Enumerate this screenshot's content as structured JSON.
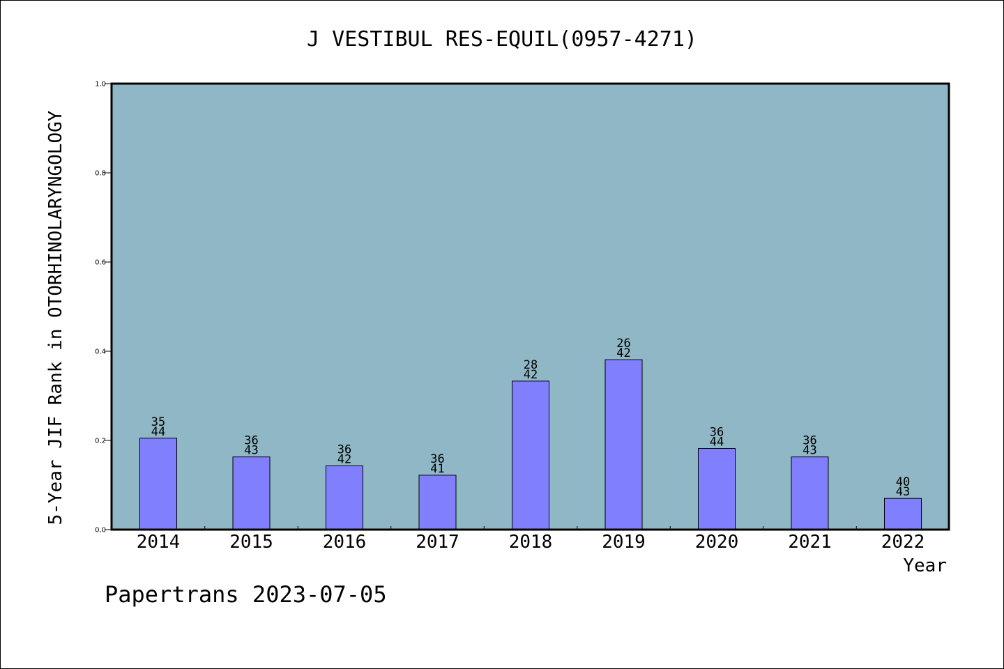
{
  "chart_data": {
    "type": "bar",
    "title": "J VESTIBUL RES-EQUIL(0957-4271)",
    "xlabel": "Year",
    "ylabel": "5-Year JIF Rank in OTORHINOLARYNGOLOGY",
    "ylim": [
      0,
      1.0
    ],
    "yticks": [
      "0.0",
      "0.2",
      "0.4",
      "0.6",
      "0.8",
      "1.0"
    ],
    "categories": [
      "2014",
      "2015",
      "2016",
      "2017",
      "2018",
      "2019",
      "2020",
      "2021",
      "2022"
    ],
    "values": [
      0.205,
      0.163,
      0.143,
      0.122,
      0.333,
      0.381,
      0.182,
      0.163,
      0.07
    ],
    "label_top": [
      "35",
      "36",
      "36",
      "36",
      "28",
      "26",
      "36",
      "36",
      "40"
    ],
    "label_bottom": [
      "44",
      "43",
      "42",
      "41",
      "42",
      "42",
      "44",
      "43",
      "43"
    ],
    "grid": false,
    "legend": "none",
    "colors": {
      "plot_background": "#8fb7c5",
      "bar_fill": "#8080ff",
      "bar_stroke": "#000000"
    }
  },
  "footer": "Papertrans 2023-07-05"
}
